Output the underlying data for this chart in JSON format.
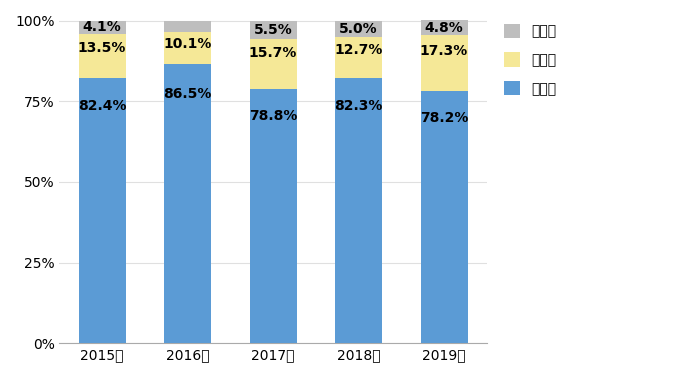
{
  "categories": [
    "2015年",
    "2016年",
    "2017年",
    "2018年",
    "2019年"
  ],
  "rikei": [
    82.4,
    86.5,
    78.8,
    82.3,
    78.2
  ],
  "hobun": [
    13.5,
    10.1,
    15.7,
    12.7,
    17.3
  ],
  "sonota": [
    4.1,
    3.4,
    5.5,
    5.0,
    4.8
  ],
  "rikei_color": "#5B9BD5",
  "hobun_color": "#F5E897",
  "sonota_color": "#BEBEBE",
  "legend_labels": [
    "その他",
    "法文系",
    "理工系"
  ],
  "yticks": [
    0,
    25,
    50,
    75,
    100
  ],
  "ytick_labels": [
    "0%",
    "25%",
    "50%",
    "75%",
    "100%"
  ],
  "bar_width": 0.55,
  "background_color": "#ffffff",
  "grid_color": "#e0e0e0",
  "font_size_labels": 10,
  "font_size_ticks": 10,
  "font_size_legend": 10
}
